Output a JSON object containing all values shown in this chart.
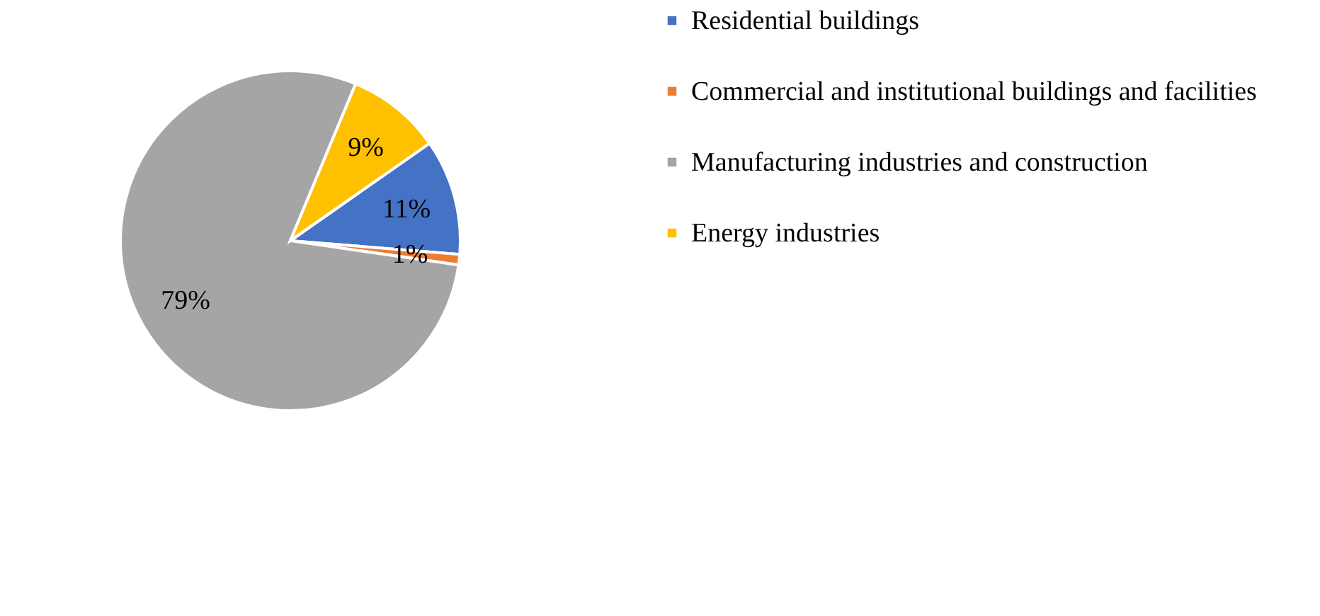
{
  "chart_data": {
    "type": "pie",
    "categories": [
      "Residential buildings",
      "Commercial and institutional buildings and facilities",
      "Manufacturing industries and construction",
      "Energy industries"
    ],
    "values": [
      11,
      1,
      79,
      9
    ],
    "colors": [
      "#4472c4",
      "#ed7d31",
      "#a5a5a5",
      "#ffc000"
    ],
    "value_labels": [
      "11%",
      "1%",
      "79%",
      "9%"
    ],
    "legend": "right"
  }
}
